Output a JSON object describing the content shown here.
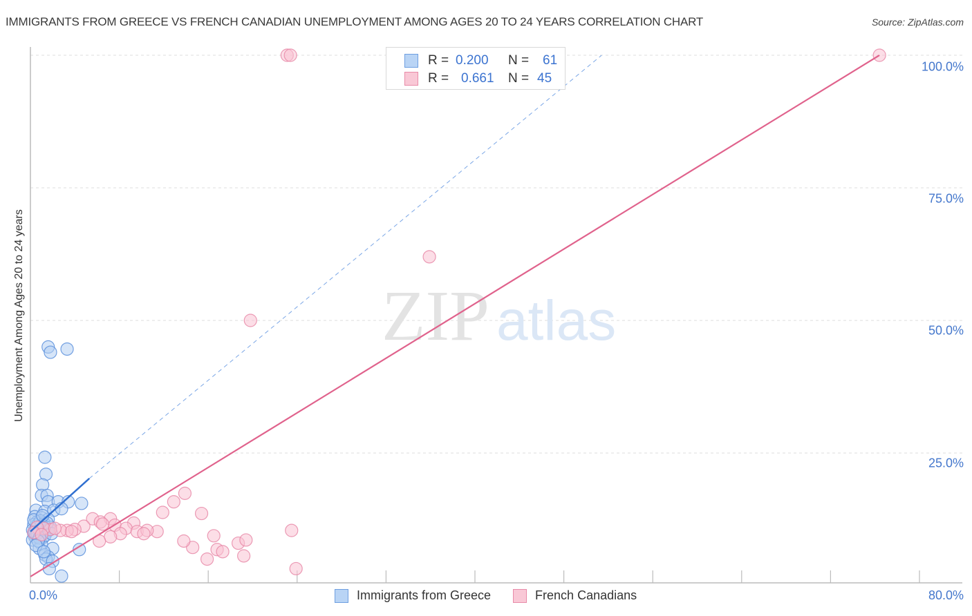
{
  "header": {
    "title": "IMMIGRANTS FROM GREECE VS FRENCH CANADIAN UNEMPLOYMENT AMONG AGES 20 TO 24 YEARS CORRELATION CHART",
    "source": "Source: ZipAtlas.com"
  },
  "watermark": {
    "zip": "ZIP",
    "atlas": "atlas"
  },
  "legend": {
    "rows": [
      {
        "series": "Immigrants from Greece",
        "r_label": "R =",
        "r_value": "0.200",
        "n_label": "N =",
        "n_value": "61",
        "color": "#6d9ee0"
      },
      {
        "series": "French Canadians",
        "r_label": "R =",
        "r_value": "0.661",
        "n_label": "N =",
        "n_value": "45",
        "color": "#e88aa8"
      }
    ]
  },
  "bottom_legend": [
    {
      "label": "Immigrants from Greece",
      "color": "#b9d4f5"
    },
    {
      "label": "French Canadians",
      "color": "#f9c8d6"
    }
  ],
  "axes": {
    "ylabel": "Unemployment Among Ages 20 to 24 years",
    "y_ticks": [
      "100.0%",
      "75.0%",
      "50.0%",
      "25.0%"
    ],
    "x_ticks": [
      "0.0%",
      "80.0%"
    ]
  },
  "chart_data": {
    "type": "scatter",
    "title": "IMMIGRANTS FROM GREECE VS FRENCH CANADIAN UNEMPLOYMENT AMONG AGES 20 TO 24 YEARS CORRELATION CHART",
    "xlabel": "",
    "ylabel": "Unemployment Among Ages 20 to 24 years",
    "xlim": [
      0,
      80
    ],
    "ylim": [
      0,
      100
    ],
    "x_tick_labels": [
      "0.0%",
      "80.0%"
    ],
    "y_tick_labels": [
      "25.0%",
      "50.0%",
      "75.0%",
      "100.0%"
    ],
    "grid": true,
    "legend_position": "top-center",
    "series": [
      {
        "name": "Immigrants from Greece",
        "color": "#6d9ee0",
        "R": 0.2,
        "N": 61,
        "trend": {
          "x": [
            0,
            5.3
          ],
          "y": [
            10.2,
            20.2
          ],
          "dashed_extension_to": [
            51.4,
            100
          ]
        },
        "points": [
          [
            1.6,
            45.0
          ],
          [
            1.8,
            44.0
          ],
          [
            3.3,
            44.6
          ],
          [
            1.3,
            24.2
          ],
          [
            1.4,
            21.0
          ],
          [
            1.1,
            19.0
          ],
          [
            1.0,
            17.0
          ],
          [
            1.5,
            17.0
          ],
          [
            1.6,
            15.8
          ],
          [
            2.5,
            15.8
          ],
          [
            3.4,
            15.8
          ],
          [
            4.6,
            15.5
          ],
          [
            0.5,
            14.2
          ],
          [
            1.3,
            14.0
          ],
          [
            2.1,
            14.2
          ],
          [
            2.8,
            14.5
          ],
          [
            0.4,
            13.0
          ],
          [
            1.0,
            12.8
          ],
          [
            1.6,
            12.5
          ],
          [
            0.6,
            12.0
          ],
          [
            1.2,
            11.8
          ],
          [
            0.3,
            11.5
          ],
          [
            0.8,
            11.0
          ],
          [
            1.4,
            11.0
          ],
          [
            0.2,
            10.5
          ],
          [
            0.6,
            10.4
          ],
          [
            1.0,
            10.2
          ],
          [
            1.5,
            10.2
          ],
          [
            0.3,
            9.8
          ],
          [
            0.9,
            9.6
          ],
          [
            1.7,
            10.5
          ],
          [
            0.4,
            9.2
          ],
          [
            1.1,
            9.0
          ],
          [
            0.2,
            8.6
          ],
          [
            1.0,
            7.8
          ],
          [
            0.8,
            7.0
          ],
          [
            2.0,
            7.0
          ],
          [
            4.4,
            6.8
          ],
          [
            1.3,
            5.8
          ],
          [
            1.6,
            5.4
          ],
          [
            1.4,
            5.0
          ],
          [
            2.0,
            4.6
          ],
          [
            1.7,
            3.2
          ],
          [
            2.8,
            1.8
          ],
          [
            0.5,
            10.8
          ],
          [
            0.7,
            11.6
          ],
          [
            1.2,
            10.6
          ],
          [
            0.9,
            12.2
          ],
          [
            1.3,
            9.4
          ],
          [
            0.6,
            9.8
          ],
          [
            1.8,
            11.0
          ],
          [
            0.4,
            10.0
          ],
          [
            1.0,
            11.4
          ],
          [
            0.8,
            9.0
          ],
          [
            1.5,
            11.8
          ],
          [
            0.3,
            12.4
          ],
          [
            1.1,
            13.2
          ],
          [
            0.7,
            8.4
          ],
          [
            1.9,
            9.8
          ],
          [
            0.5,
            7.6
          ],
          [
            1.2,
            6.4
          ]
        ]
      },
      {
        "name": "French Canadians",
        "color": "#e88aa8",
        "R": 0.661,
        "N": 45,
        "trend": {
          "x": [
            0,
            76.4
          ],
          "y": [
            1.7,
            100
          ]
        },
        "points": [
          [
            23.1,
            100.0
          ],
          [
            23.4,
            100.0
          ],
          [
            76.4,
            100.0
          ],
          [
            35.9,
            62.0
          ],
          [
            19.8,
            50.0
          ],
          [
            13.9,
            17.4
          ],
          [
            12.9,
            15.8
          ],
          [
            11.9,
            13.8
          ],
          [
            15.4,
            13.6
          ],
          [
            5.6,
            12.6
          ],
          [
            7.2,
            12.6
          ],
          [
            6.3,
            12.0
          ],
          [
            6.5,
            11.6
          ],
          [
            7.6,
            11.4
          ],
          [
            9.3,
            11.8
          ],
          [
            4.8,
            11.2
          ],
          [
            4.0,
            10.6
          ],
          [
            3.3,
            10.4
          ],
          [
            2.7,
            10.4
          ],
          [
            1.8,
            10.6
          ],
          [
            1.2,
            10.8
          ],
          [
            0.6,
            11.0
          ],
          [
            0.3,
            10.0
          ],
          [
            8.6,
            10.8
          ],
          [
            9.6,
            10.2
          ],
          [
            11.4,
            10.2
          ],
          [
            10.5,
            10.4
          ],
          [
            8.1,
            9.8
          ],
          [
            10.2,
            9.8
          ],
          [
            7.2,
            9.2
          ],
          [
            6.2,
            8.4
          ],
          [
            14.6,
            7.2
          ],
          [
            13.8,
            8.4
          ],
          [
            16.5,
            9.4
          ],
          [
            18.7,
            8.0
          ],
          [
            19.4,
            8.6
          ],
          [
            16.8,
            6.8
          ],
          [
            17.3,
            6.4
          ],
          [
            15.9,
            5.0
          ],
          [
            19.2,
            5.6
          ],
          [
            23.5,
            10.4
          ],
          [
            23.9,
            3.2
          ],
          [
            3.7,
            10.2
          ],
          [
            2.2,
            10.8
          ],
          [
            1.0,
            9.6
          ]
        ]
      }
    ]
  }
}
